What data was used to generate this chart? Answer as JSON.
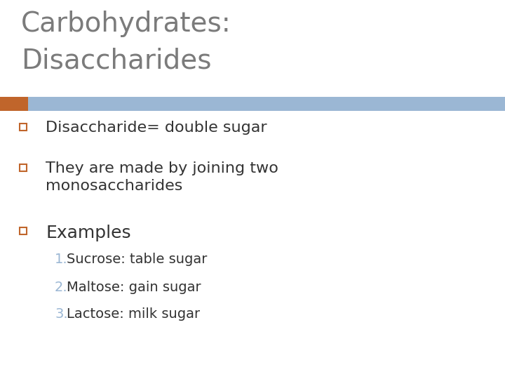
{
  "title_line1": "Carbohydrates:",
  "title_line2": "Disaccharides",
  "title_color": "#7B7B7B",
  "title_fontsize": 28,
  "background_color": "#FFFFFF",
  "header_bar_color": "#9BB7D4",
  "header_bar_accent_color": "#C0652B",
  "bullet_color": "#333333",
  "bullet_items": [
    "Disaccharide= double sugar",
    "They are made by joining two\nmonosaccharides",
    "Examples"
  ],
  "bullet_fontsize": 16,
  "square_bullet_color": "#C0652B",
  "numbered_items": [
    "Sucrose: table sugar",
    "Maltose: gain sugar",
    "Lactose: milk sugar"
  ],
  "numbered_fontsize": 14,
  "number_color": "#9BB7D4"
}
